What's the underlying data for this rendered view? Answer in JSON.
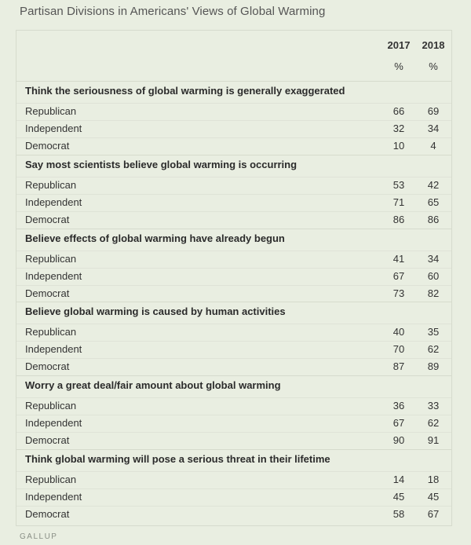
{
  "title": "Partisan Divisions in Americans' Views of Global Warming",
  "source": "GALLUP",
  "chart_data": {
    "type": "table",
    "title": "Partisan Divisions in Americans' Views of Global Warming",
    "columns": [
      "2017",
      "2018"
    ],
    "unit_row": [
      "%",
      "%"
    ],
    "sections": [
      {
        "heading": "Think the seriousness of global warming is generally exaggerated",
        "rows": [
          {
            "label": "Republican",
            "values": [
              66,
              69
            ]
          },
          {
            "label": "Independent",
            "values": [
              32,
              34
            ]
          },
          {
            "label": "Democrat",
            "values": [
              10,
              4
            ]
          }
        ]
      },
      {
        "heading": "Say most scientists believe global warming is occurring",
        "rows": [
          {
            "label": "Republican",
            "values": [
              53,
              42
            ]
          },
          {
            "label": "Independent",
            "values": [
              71,
              65
            ]
          },
          {
            "label": "Democrat",
            "values": [
              86,
              86
            ]
          }
        ]
      },
      {
        "heading": "Believe effects of global warming have already begun",
        "rows": [
          {
            "label": "Republican",
            "values": [
              41,
              34
            ]
          },
          {
            "label": "Independent",
            "values": [
              67,
              60
            ]
          },
          {
            "label": "Democrat",
            "values": [
              73,
              82
            ]
          }
        ]
      },
      {
        "heading": "Believe global warming is caused by human activities",
        "rows": [
          {
            "label": "Republican",
            "values": [
              40,
              35
            ]
          },
          {
            "label": "Independent",
            "values": [
              70,
              62
            ]
          },
          {
            "label": "Democrat",
            "values": [
              87,
              89
            ]
          }
        ]
      },
      {
        "heading": "Worry a great deal/fair amount about global warming",
        "rows": [
          {
            "label": "Republican",
            "values": [
              36,
              33
            ]
          },
          {
            "label": "Independent",
            "values": [
              67,
              62
            ]
          },
          {
            "label": "Democrat",
            "values": [
              90,
              91
            ]
          }
        ]
      },
      {
        "heading": "Think global warming will pose a serious threat in their lifetime",
        "rows": [
          {
            "label": "Republican",
            "values": [
              14,
              18
            ]
          },
          {
            "label": "Independent",
            "values": [
              45,
              45
            ]
          },
          {
            "label": "Democrat",
            "values": [
              58,
              67
            ]
          }
        ]
      }
    ]
  }
}
